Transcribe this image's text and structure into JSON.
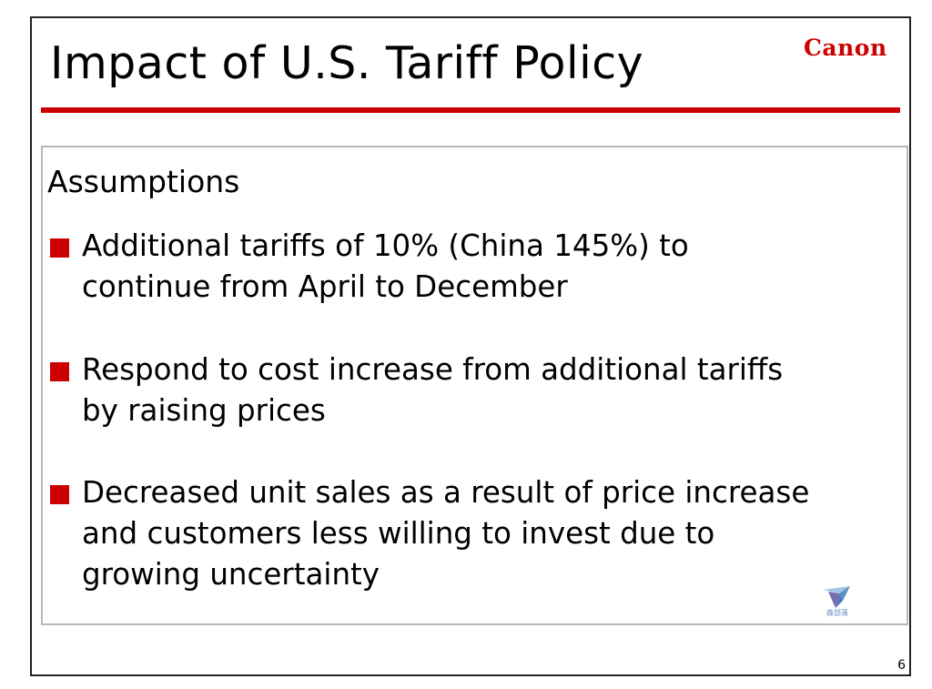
{
  "slide": {
    "title": "Impact of U.S. Tariff Policy",
    "logo_text": "Canon",
    "page_number": "6"
  },
  "content": {
    "heading": "Assumptions",
    "bullets": [
      {
        "lines": [
          "Additional tariffs of 10% (China 145%) to",
          "continue from April to December"
        ]
      },
      {
        "lines": [
          "Respond to cost increase from additional tariffs",
          "by raising prices"
        ]
      },
      {
        "lines": [
          "Decreased unit sales as a result of price increase",
          "and customers less willing to invest due to",
          "growing uncertainty"
        ]
      }
    ]
  },
  "watermark": {
    "icon": "bird-logo-icon",
    "text": "森部落"
  },
  "colors": {
    "accent_red": "#cc0000",
    "frame_border": "#222222",
    "box_border": "#b8b8b8"
  }
}
